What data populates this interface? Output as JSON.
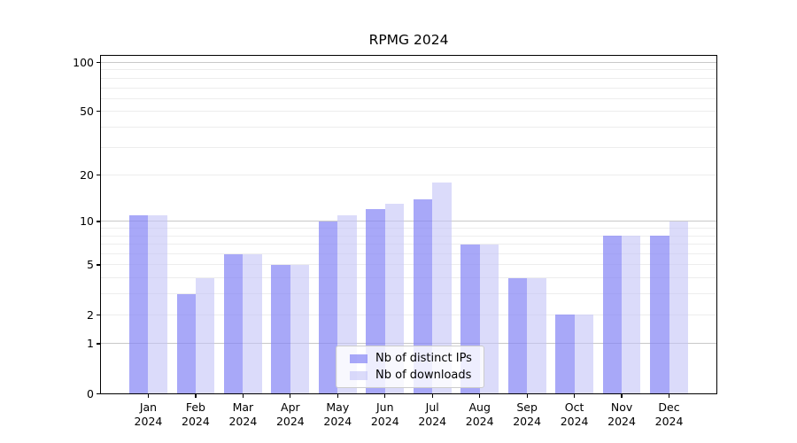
{
  "title": "RPMG 2024",
  "chart_data": {
    "type": "bar",
    "title": "RPMG 2024",
    "x_categories": [
      "Jan",
      "Feb",
      "Mar",
      "Apr",
      "May",
      "Jun",
      "Jul",
      "Aug",
      "Sep",
      "Oct",
      "Nov",
      "Dec"
    ],
    "x_year": "2024",
    "series": [
      {
        "name": "Nb of distinct IPs",
        "color": "rgba(133,133,245,0.71)",
        "values": [
          11,
          3,
          6,
          5,
          10,
          12,
          14,
          7,
          4,
          2,
          8,
          8
        ]
      },
      {
        "name": "Nb of downloads",
        "color": "rgba(194,194,247,0.59)",
        "values": [
          11,
          4,
          6,
          5,
          11,
          13,
          18,
          7,
          4,
          2,
          8,
          10
        ]
      }
    ],
    "xlabel": "",
    "ylabel": "",
    "y_scale": "log10(value+1)",
    "y_ticks": [
      0,
      1,
      2,
      5,
      10,
      20,
      50,
      100
    ],
    "y_major_gridlines": [
      1,
      10,
      100
    ],
    "y_minor_gridlines": [
      2,
      3,
      4,
      5,
      6,
      7,
      8,
      9,
      20,
      30,
      40,
      50,
      60,
      70,
      80,
      90
    ],
    "ylim": [
      0,
      110
    ],
    "grid": true,
    "legend_position": "lower center"
  },
  "colors": {
    "background": "#ffffff",
    "bar_distinct_ips": "rgba(133,133,245,0.71)",
    "bar_downloads": "rgba(194,194,247,0.59)",
    "major_gridline": "#c9c9c9",
    "minor_gridline": "#ededed",
    "axis": "#000000",
    "legend_border": "#cccccc",
    "text": "#000000"
  }
}
